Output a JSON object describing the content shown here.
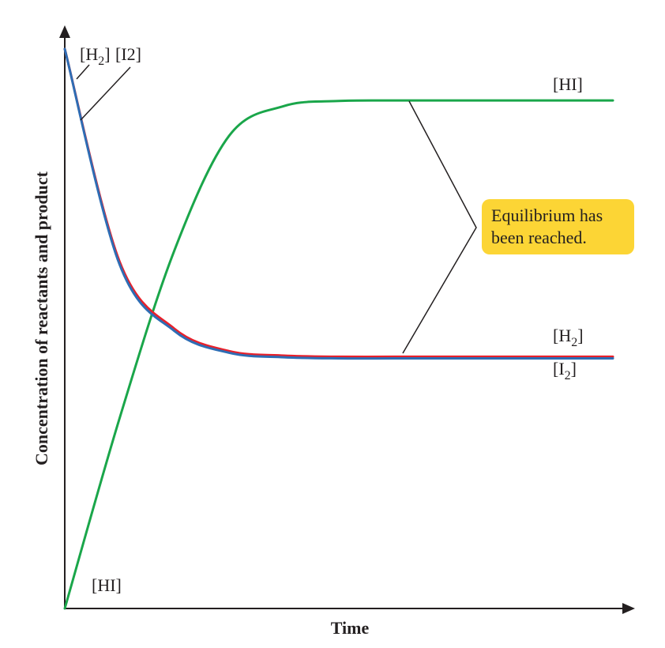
{
  "chart_data": {
    "type": "line",
    "xlabel": "Time",
    "ylabel": "Concentration of reactants and product",
    "xlim": [
      0,
      10
    ],
    "ylim": [
      0,
      10
    ],
    "series": [
      {
        "name": "[HI]",
        "color": "#1aa64a",
        "x": [
          0,
          1,
          2,
          3,
          4,
          5,
          6,
          7,
          8,
          9,
          10
        ],
        "y": [
          0,
          3.4,
          6.4,
          8.45,
          8.98,
          9.07,
          9.08,
          9.08,
          9.08,
          9.08,
          9.08
        ]
      },
      {
        "name": "[H2]",
        "color": "#e8202a",
        "x": [
          0,
          1,
          2,
          3,
          4,
          5,
          6,
          7,
          8,
          9,
          10
        ],
        "y": [
          10,
          6.2,
          5.0,
          4.6,
          4.52,
          4.5,
          4.5,
          4.5,
          4.5,
          4.5,
          4.5
        ]
      },
      {
        "name": "[I2]",
        "color": "#2e6db4",
        "x": [
          0,
          1,
          2,
          3,
          4,
          5,
          6,
          7,
          8,
          9,
          10
        ],
        "y": [
          10,
          6.15,
          4.96,
          4.57,
          4.49,
          4.47,
          4.47,
          4.47,
          4.47,
          4.47,
          4.47
        ]
      }
    ],
    "annotations": {
      "top_left_label_h2": "[H",
      "top_left_label_h2_sub": "2",
      "top_left_label_h2_close": "]",
      "top_left_label_i2": "[I2]",
      "hi_top_label": "[HI]",
      "hi_bottom_label": "[HI]",
      "h2_right_label": "[H",
      "h2_right_label_sub": "2",
      "h2_right_label_close": "]",
      "i2_right_label": "[I",
      "i2_right_label_sub": "2",
      "i2_right_label_close": "]",
      "equilibrium_line1": "Equilibrium has",
      "equilibrium_line2": "been reached.",
      "equilibrium_color": "#fcd535"
    }
  }
}
